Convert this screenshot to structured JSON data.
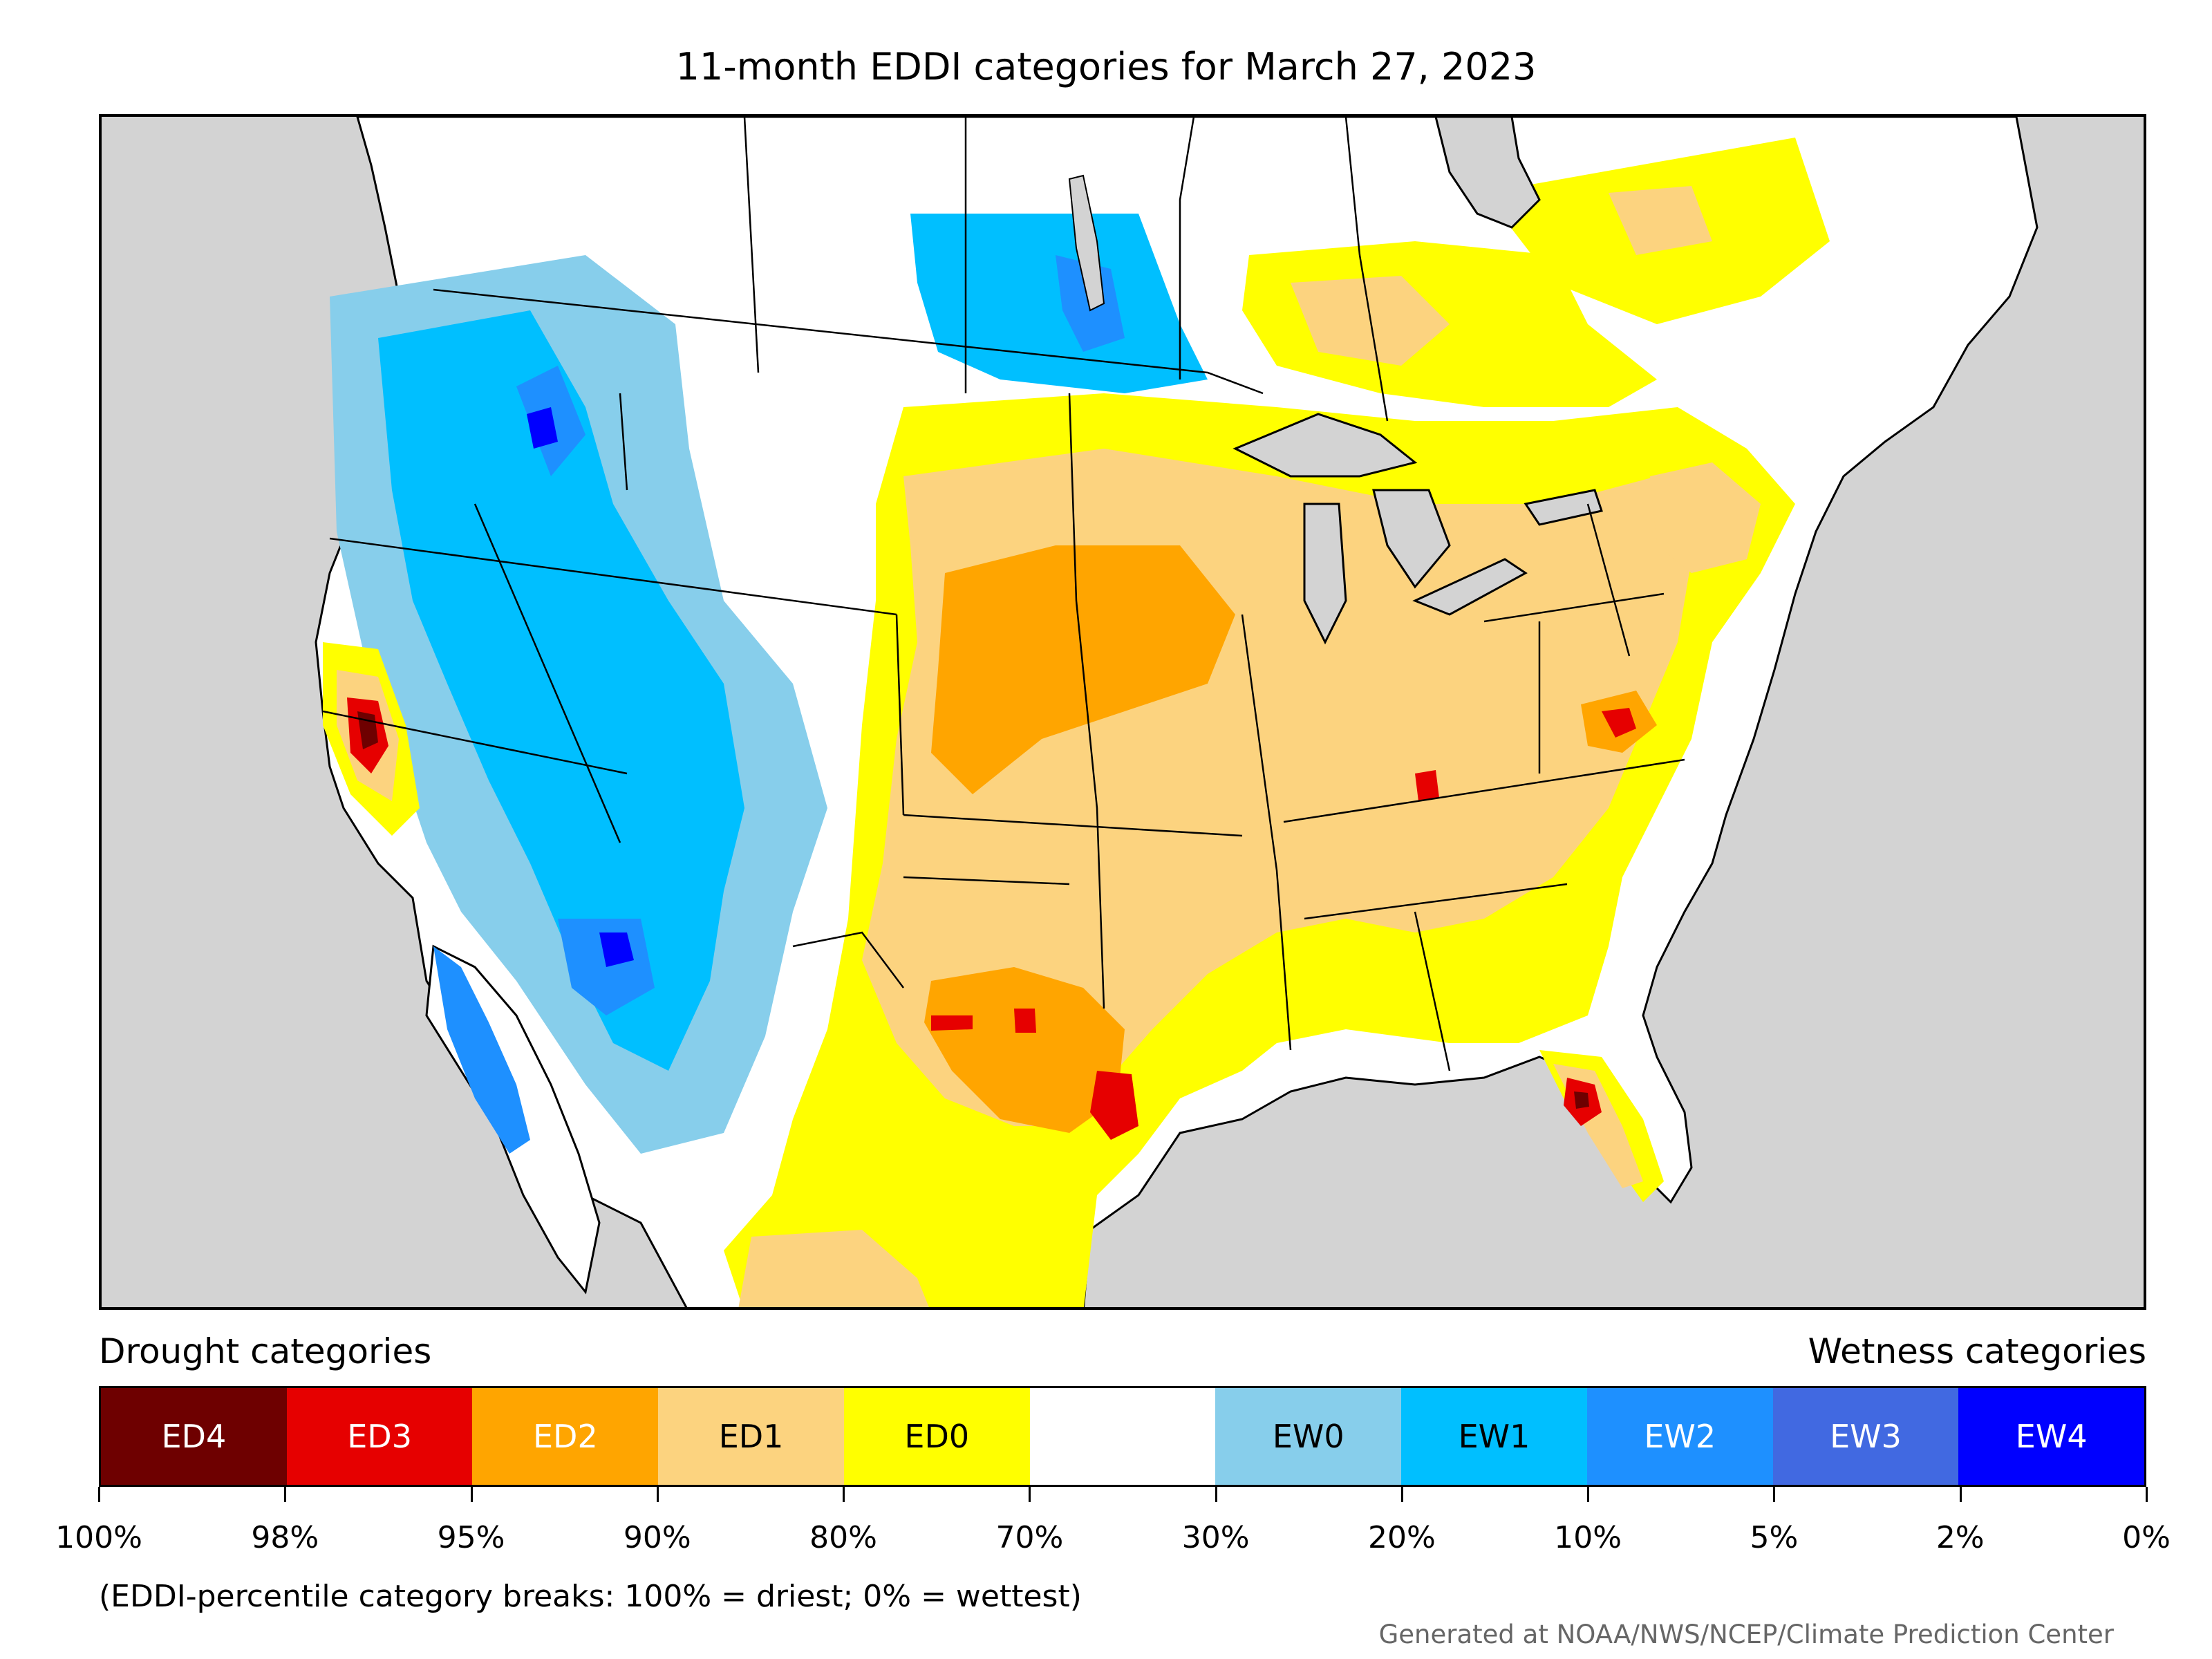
{
  "title": "11-month EDDI categories for March 27, 2023",
  "legend": {
    "drought_heading": "Drought categories",
    "wetness_heading": "Wetness categories",
    "categories": [
      {
        "label": "ED4",
        "color": "#6e0000",
        "text_color": "#ffffff"
      },
      {
        "label": "ED3",
        "color": "#e60000",
        "text_color": "#ffffff"
      },
      {
        "label": "ED2",
        "color": "#ffa500",
        "text_color": "#ffffff"
      },
      {
        "label": "ED1",
        "color": "#fcd37f",
        "text_color": "#000000"
      },
      {
        "label": "ED0",
        "color": "#ffff00",
        "text_color": "#000000"
      },
      {
        "label": "",
        "color": "#ffffff",
        "text_color": "#000000"
      },
      {
        "label": "EW0",
        "color": "#87ceeb",
        "text_color": "#000000"
      },
      {
        "label": "EW1",
        "color": "#00bfff",
        "text_color": "#000000"
      },
      {
        "label": "EW2",
        "color": "#1e90ff",
        "text_color": "#ffffff"
      },
      {
        "label": "EW3",
        "color": "#4169e1",
        "text_color": "#ffffff"
      },
      {
        "label": "EW4",
        "color": "#0000ff",
        "text_color": "#ffffff"
      }
    ],
    "tick_labels": [
      "100%",
      "98%",
      "95%",
      "90%",
      "80%",
      "70%",
      "30%",
      "20%",
      "10%",
      "5%",
      "2%",
      "0%"
    ]
  },
  "caption": "(EDDI-percentile category breaks: 100% = driest; 0% = wettest)",
  "credit": "Generated at NOAA/NWS/NCEP/Climate Prediction Center",
  "map": {
    "ocean_color": "#d3d3d3",
    "land_color": "#ffffff"
  }
}
